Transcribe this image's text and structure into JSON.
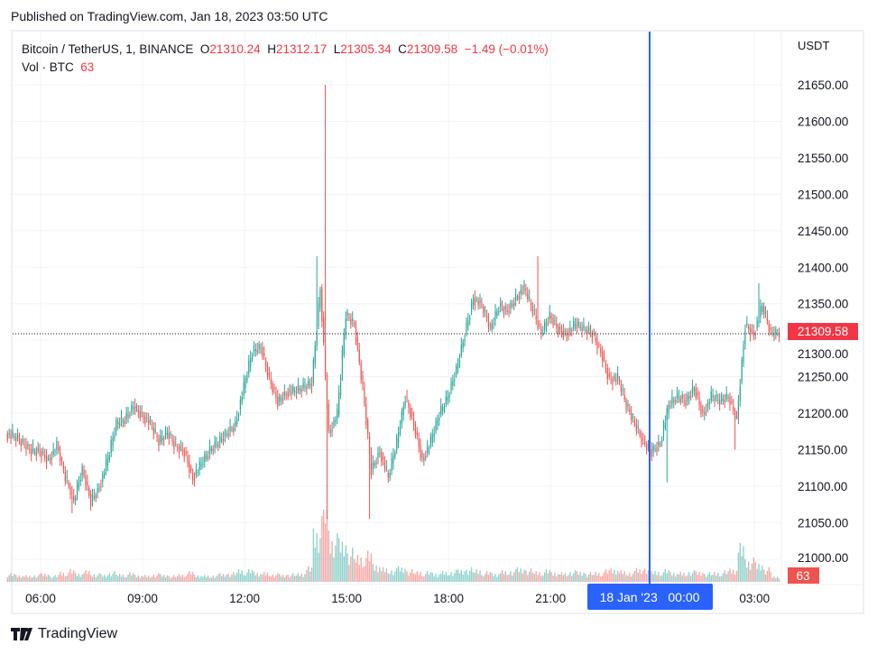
{
  "published": "Published on TradingView.com, Jan 18, 2023 03:50 UTC",
  "legend": {
    "symbol": "Bitcoin / TetherUS, 1, BINANCE",
    "o_label": "O",
    "o": "21310.24",
    "h_label": "H",
    "h": "21312.17",
    "l_label": "L",
    "l": "21305.34",
    "c_label": "C",
    "c": "21309.58",
    "change": "−1.49 (−0.01%)",
    "vol_label": "Vol · BTC",
    "vol": "63"
  },
  "price_axis": {
    "currency": "USDT",
    "last_price_label": "21309.58",
    "last_volume_label": "63"
  },
  "crosshair": {
    "time_label": "18 Jan '23   00:00"
  },
  "footer": {
    "brand": "TradingView"
  },
  "colors": {
    "up": "#26a69a",
    "down": "#ef5350",
    "crosshair": "#2962ff",
    "last_price": "#f23645",
    "grid": "#f0f3fa"
  },
  "chart_data": {
    "type": "candlestick",
    "interval": "1 minute (shown aggregated to 15-minute approximations)",
    "ylim": [
      20975,
      21675
    ],
    "yticks": [
      21000,
      21050,
      21100,
      21150,
      21200,
      21250,
      21300,
      21350,
      21400,
      21450,
      21500,
      21550,
      21600,
      21650
    ],
    "ytick_labels": [
      "21000.00",
      "21050.00",
      "21100.00",
      "21150.00",
      "21200.00",
      "21250.00",
      "21300.00",
      "21350.00",
      "21400.00",
      "21450.00",
      "21500.00",
      "21550.00",
      "21600.00",
      "21650.00"
    ],
    "xticks": [
      "06:00",
      "09:00",
      "12:00",
      "15:00",
      "18:00",
      "21:00",
      "00:00",
      "03:00"
    ],
    "times": [
      "05:15",
      "05:30",
      "05:45",
      "06:00",
      "06:15",
      "06:30",
      "06:45",
      "07:00",
      "07:15",
      "07:30",
      "07:45",
      "08:00",
      "08:15",
      "08:30",
      "08:45",
      "09:00",
      "09:15",
      "09:30",
      "09:45",
      "10:00",
      "10:15",
      "10:30",
      "10:45",
      "11:00",
      "11:15",
      "11:30",
      "11:45",
      "12:00",
      "12:15",
      "12:30",
      "12:45",
      "13:00",
      "13:15",
      "13:30",
      "13:45",
      "14:00",
      "14:15",
      "14:30",
      "14:45",
      "15:00",
      "15:15",
      "15:30",
      "15:45",
      "16:00",
      "16:15",
      "16:30",
      "16:45",
      "17:00",
      "17:15",
      "17:30",
      "17:45",
      "18:00",
      "18:15",
      "18:30",
      "18:45",
      "19:00",
      "19:15",
      "19:30",
      "19:45",
      "20:00",
      "20:15",
      "20:30",
      "20:45",
      "21:00",
      "21:15",
      "21:30",
      "21:45",
      "22:00",
      "22:15",
      "22:30",
      "22:45",
      "23:00",
      "23:15",
      "23:30",
      "23:45",
      "00:00",
      "00:15",
      "00:30",
      "00:45",
      "01:00",
      "01:15",
      "01:30",
      "01:45",
      "02:00",
      "02:15",
      "02:30",
      "02:45",
      "03:00",
      "03:15",
      "03:30",
      "03:45"
    ],
    "close": [
      21167,
      21158,
      21148,
      21148,
      21136,
      21154,
      21111,
      21080,
      21123,
      21080,
      21099,
      21136,
      21185,
      21191,
      21210,
      21198,
      21185,
      21160,
      21173,
      21154,
      21148,
      21111,
      21130,
      21148,
      21160,
      21173,
      21185,
      21235,
      21284,
      21290,
      21247,
      21216,
      21229,
      21229,
      21235,
      21241,
      21371,
      21173,
      21198,
      21334,
      21321,
      21235,
      21123,
      21148,
      21111,
      21160,
      21222,
      21185,
      21136,
      21160,
      21198,
      21222,
      21260,
      21309,
      21358,
      21346,
      21315,
      21346,
      21340,
      21358,
      21371,
      21340,
      21309,
      21334,
      21315,
      21309,
      21321,
      21315,
      21309,
      21284,
      21247,
      21247,
      21210,
      21185,
      21160,
      21148,
      21160,
      21210,
      21222,
      21216,
      21235,
      21198,
      21222,
      21216,
      21222,
      21191,
      21321,
      21309,
      21346,
      21309,
      21309.58
    ],
    "high_extremes": {
      "14:30": 21650,
      "14:15": 21415,
      "20:45": 21415,
      "03:15": 21378
    },
    "low_extremes": {
      "14:30": 21055,
      "15:45": 21055,
      "07:00": 21063,
      "00:30": 21105,
      "02:30": 21150
    },
    "volume": [
      90,
      80,
      70,
      80,
      90,
      70,
      110,
      130,
      100,
      120,
      90,
      80,
      110,
      90,
      100,
      80,
      70,
      90,
      80,
      70,
      90,
      110,
      80,
      70,
      80,
      90,
      100,
      140,
      130,
      110,
      100,
      90,
      80,
      90,
      100,
      160,
      600,
      900,
      500,
      450,
      350,
      300,
      320,
      200,
      150,
      140,
      160,
      130,
      120,
      110,
      100,
      110,
      120,
      130,
      150,
      140,
      110,
      100,
      120,
      130,
      150,
      140,
      120,
      130,
      110,
      100,
      120,
      110,
      100,
      110,
      130,
      150,
      120,
      110,
      140,
      160,
      120,
      130,
      110,
      100,
      120,
      110,
      100,
      110,
      120,
      150,
      400,
      250,
      200,
      150,
      63
    ],
    "volume_current": 63
  }
}
